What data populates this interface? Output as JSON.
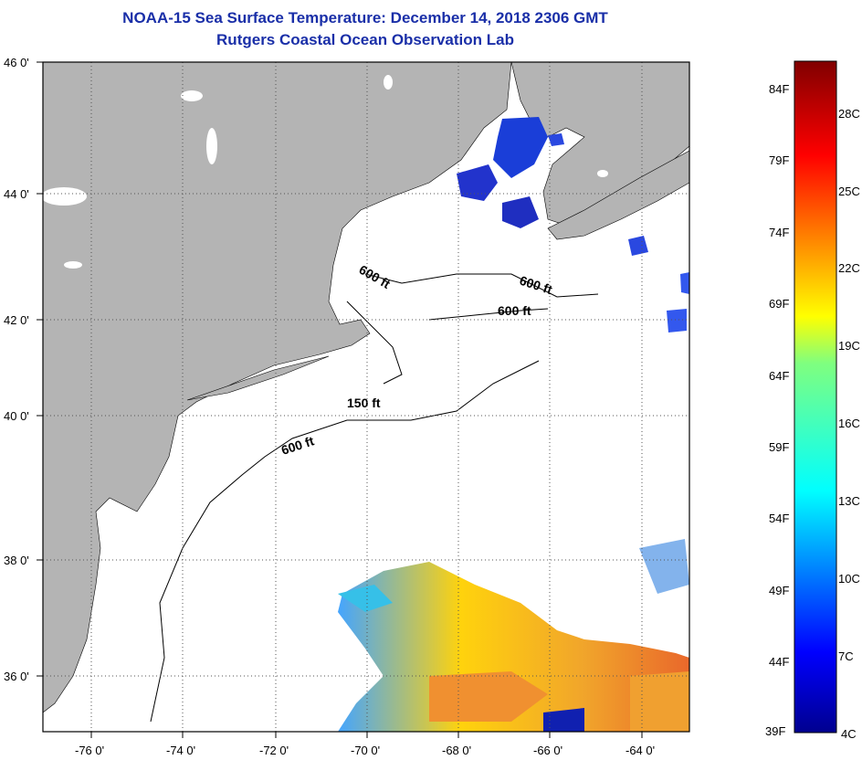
{
  "title": "NOAA-15 Sea Surface Temperature:  December 14, 2018 2306 GMT",
  "subtitle": "Rutgers Coastal Ocean Observation Lab",
  "lat_labels": [
    "46 0'",
    "44 0'",
    "42 0'",
    "40 0'",
    "38 0'",
    "36 0'"
  ],
  "lon_labels": [
    "-76 0'",
    "-74 0'",
    "-72 0'",
    "-70 0'",
    "-68 0'",
    "-66 0'",
    "-64 0'"
  ],
  "contours": {
    "a": "600 ft",
    "b": "600 ft",
    "c": "600 ft",
    "d": "150 ft",
    "e": "600 ft"
  },
  "colorbar": {
    "f_labels": [
      "84F",
      "79F",
      "74F",
      "69F",
      "64F",
      "59F",
      "54F",
      "49F",
      "44F",
      "39F"
    ],
    "c_labels": [
      "28C",
      "25C",
      "22C",
      "19C",
      "16C",
      "13C",
      "10C",
      "7C",
      "4C"
    ]
  },
  "colors": {
    "land": "#b4b4b4",
    "ocean": "#ffffff",
    "title": "#1a2fa8"
  }
}
